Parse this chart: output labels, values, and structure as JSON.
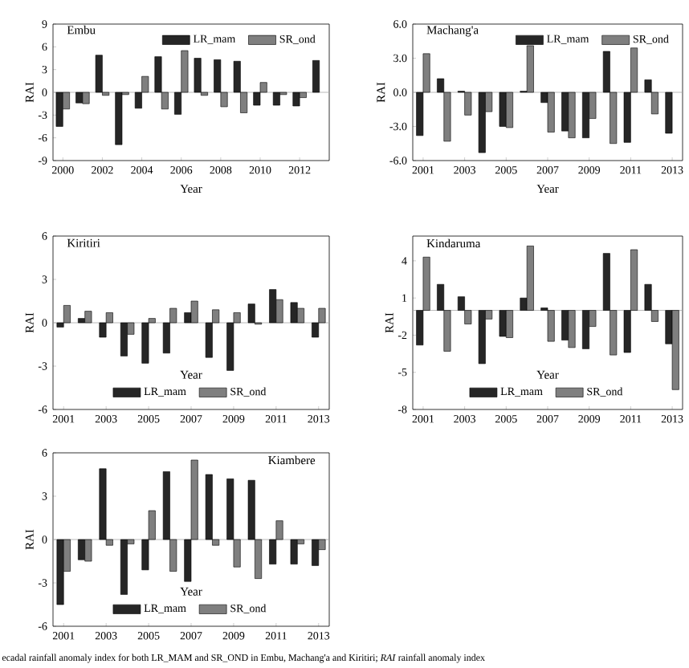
{
  "chart_data": [
    {
      "type": "bar",
      "title": "Embu",
      "xlabel": "Year",
      "ylabel": "RAI",
      "x": [
        2000,
        2001,
        2002,
        2003,
        2004,
        2005,
        2006,
        2007,
        2008,
        2009,
        2010,
        2011,
        2012,
        2013
      ],
      "xlim": [
        1999.5,
        2013.5
      ],
      "xticks": [
        2000,
        2002,
        2004,
        2006,
        2008,
        2010,
        2012
      ],
      "ylim": [
        -9,
        9
      ],
      "yticks": [
        -9,
        -6,
        -3,
        0,
        3,
        6,
        9
      ],
      "legend": "top right",
      "series": [
        {
          "name": "LR_mam",
          "color": "#262626",
          "values": [
            -4.5,
            -1.4,
            4.9,
            -6.9,
            -2.1,
            4.7,
            -2.9,
            4.5,
            4.3,
            4.1,
            -1.7,
            -1.7,
            -1.8,
            4.2
          ]
        },
        {
          "name": "SR_ond",
          "color": "#7f7f7f",
          "values": [
            -2.2,
            -1.5,
            -0.4,
            -0.3,
            2.1,
            -2.2,
            5.5,
            -0.4,
            -1.9,
            -2.7,
            1.3,
            -0.3,
            -0.7,
            null
          ]
        }
      ]
    },
    {
      "type": "bar",
      "title": "Machang'a",
      "xlabel": "Year",
      "ylabel": "RAI",
      "x": [
        2001,
        2002,
        2003,
        2004,
        2005,
        2006,
        2007,
        2008,
        2009,
        2010,
        2011,
        2012,
        2013
      ],
      "xlim": [
        2000.5,
        2013.5
      ],
      "xticks": [
        2001,
        2003,
        2005,
        2007,
        2009,
        2011,
        2013
      ],
      "ylim": [
        -6,
        6
      ],
      "yticks": [
        {
          "value": -6,
          "label": "-6.0"
        },
        {
          "value": -3,
          "label": "-3.0"
        },
        {
          "value": 0,
          "label": "0.0"
        },
        {
          "value": 3,
          "label": "3.0"
        },
        {
          "value": 6,
          "label": "6.0"
        }
      ],
      "legend": "top right",
      "series": [
        {
          "name": "LR_mam",
          "color": "#262626",
          "values": [
            -3.8,
            1.2,
            0.1,
            -5.3,
            -3.0,
            0.1,
            -0.9,
            -3.4,
            -4.0,
            3.6,
            -4.4,
            1.1,
            -3.6
          ]
        },
        {
          "name": "SR_ond",
          "color": "#7f7f7f",
          "values": [
            3.4,
            -4.3,
            -2.0,
            -1.7,
            -3.1,
            4.1,
            -3.5,
            -4.0,
            -2.3,
            -4.5,
            3.9,
            -1.9,
            null
          ]
        }
      ]
    },
    {
      "type": "bar",
      "title": "Kiritiri",
      "xlabel": "Year",
      "ylabel": "RAI",
      "x": [
        2001,
        2002,
        2003,
        2004,
        2005,
        2006,
        2007,
        2008,
        2009,
        2010,
        2011,
        2012,
        2013
      ],
      "xlim": [
        2000.5,
        2013.5
      ],
      "xticks": [
        2001,
        2003,
        2005,
        2007,
        2009,
        2011,
        2013
      ],
      "ylim": [
        -6,
        6
      ],
      "yticks": [
        -6,
        -3,
        0,
        3,
        6
      ],
      "legend": "bottom",
      "series": [
        {
          "name": "LR_mam",
          "color": "#262626",
          "values": [
            -0.3,
            0.3,
            -1.0,
            -2.3,
            -2.8,
            -2.1,
            0.7,
            -2.4,
            -3.3,
            1.3,
            2.3,
            1.4,
            -1.0
          ]
        },
        {
          "name": "SR_ond",
          "color": "#7f7f7f",
          "values": [
            1.2,
            0.8,
            0.7,
            -0.8,
            0.3,
            1.0,
            1.5,
            0.9,
            0.7,
            -0.1,
            1.6,
            1.0,
            1.0
          ]
        }
      ]
    },
    {
      "type": "bar",
      "title": "Kindaruma",
      "xlabel": "Year",
      "ylabel": "RAI",
      "x": [
        2001,
        2002,
        2003,
        2004,
        2005,
        2006,
        2007,
        2008,
        2009,
        2010,
        2011,
        2012,
        2013
      ],
      "xlim": [
        2000.5,
        2013.5
      ],
      "xticks": [
        2001,
        2003,
        2005,
        2007,
        2009,
        2011,
        2013
      ],
      "ylim": [
        -8,
        6
      ],
      "yticks": [
        -8,
        -5,
        -2,
        1,
        4
      ],
      "legend": "bottom",
      "series": [
        {
          "name": "LR_mam",
          "color": "#262626",
          "values": [
            -2.8,
            2.1,
            1.1,
            -4.3,
            -2.1,
            1.0,
            0.2,
            -2.4,
            -3.1,
            4.6,
            -3.4,
            2.1,
            -2.7
          ]
        },
        {
          "name": "SR_ond",
          "color": "#7f7f7f",
          "values": [
            4.3,
            -3.3,
            -1.1,
            -0.7,
            -2.2,
            5.2,
            -2.5,
            -3.0,
            -1.3,
            -3.6,
            4.9,
            -0.9,
            -6.4
          ]
        }
      ]
    },
    {
      "type": "bar",
      "title": "Kiambere",
      "xlabel": "Year",
      "ylabel": "RAI",
      "x": [
        2001,
        2002,
        2003,
        2004,
        2005,
        2006,
        2007,
        2008,
        2009,
        2010,
        2011,
        2012,
        2013
      ],
      "xlim": [
        2000.5,
        2013.5
      ],
      "xticks": [
        2001,
        2003,
        2005,
        2007,
        2009,
        2011,
        2013
      ],
      "ylim": [
        -6,
        6
      ],
      "yticks": [
        -6,
        -3,
        0,
        3,
        6
      ],
      "legend": "bottom",
      "annotations": [
        "ecadal rainfall anomaly index for both LR_MAM and SR_OND in Embu, Machang'a and Kiritiri; *RAI* rainfall anomaly index"
      ],
      "series": [
        {
          "name": "LR_mam",
          "color": "#262626",
          "values": [
            -4.5,
            -1.4,
            4.9,
            -3.8,
            -2.1,
            4.7,
            -2.9,
            4.5,
            4.2,
            4.1,
            -1.7,
            -1.7,
            -1.8
          ]
        },
        {
          "name": "SR_ond",
          "color": "#7f7f7f",
          "values": [
            -2.2,
            -1.5,
            -0.4,
            -0.3,
            2.0,
            -2.2,
            5.5,
            -0.4,
            -1.9,
            -2.7,
            1.3,
            -0.3,
            -0.7
          ]
        }
      ]
    }
  ]
}
